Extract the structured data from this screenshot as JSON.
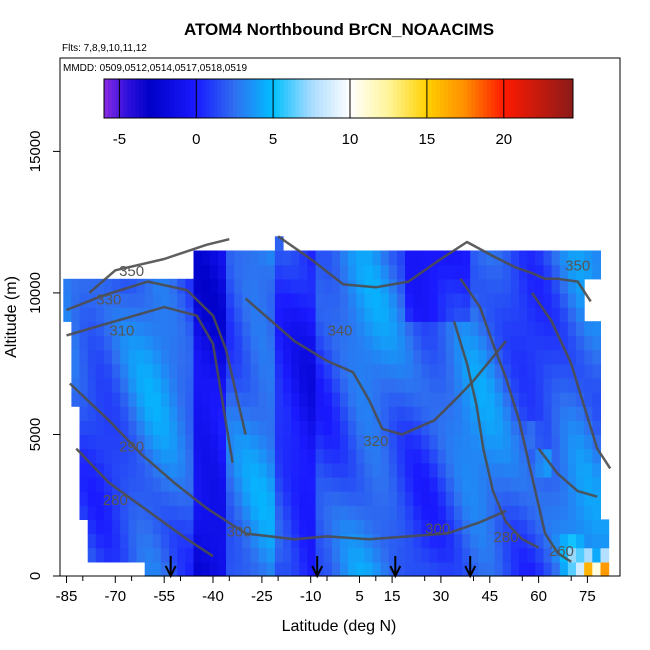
{
  "chart_data": {
    "type": "heatmap",
    "title": "ATOM4 Northbound BrCN_NOAACIMS",
    "flights_label": "Flts: 7,8,9,10,11,12",
    "dates_label": "MMDD: 0509,0512,0514,0517,0518,0519",
    "xlabel": "Latitude (deg N)",
    "ylabel": "Altitude (m)",
    "xlim": [
      -87,
      85
    ],
    "ylim": [
      0,
      18300
    ],
    "x_ticks": [
      -85,
      -70,
      -55,
      -40,
      -25,
      -10,
      5,
      15,
      30,
      45,
      60,
      75
    ],
    "y_ticks": [
      0,
      5000,
      10000,
      15000
    ],
    "colorbar": {
      "range": [
        -6,
        24.5
      ],
      "ticks": [
        -5,
        0,
        5,
        10,
        15,
        20
      ],
      "stops": [
        {
          "v": -6,
          "c": "#8a2be2"
        },
        {
          "v": -4.5,
          "c": "#3010dd"
        },
        {
          "v": -3,
          "c": "#0000c8"
        },
        {
          "v": 0,
          "c": "#1a1aff"
        },
        {
          "v": 2.5,
          "c": "#2f6ff0"
        },
        {
          "v": 5,
          "c": "#00bfff"
        },
        {
          "v": 7.5,
          "c": "#a9dcff"
        },
        {
          "v": 10,
          "c": "#ffffff"
        },
        {
          "v": 12.5,
          "c": "#fff59a"
        },
        {
          "v": 15,
          "c": "#ffd000"
        },
        {
          "v": 17.5,
          "c": "#ff8c00"
        },
        {
          "v": 20,
          "c": "#ff1a00"
        },
        {
          "v": 24.5,
          "c": "#8b1a1a"
        }
      ]
    },
    "coverage": [
      {
        "lat": [
          -85,
          73
        ],
        "alt": [
          9000,
          10500
        ]
      },
      {
        "lat": [
          -83,
          78
        ],
        "alt": [
          6000,
          9000
        ]
      },
      {
        "lat": [
          -80,
          80
        ],
        "alt": [
          2000,
          6000
        ]
      },
      {
        "lat": [
          -78,
          82
        ],
        "alt": [
          500,
          2000
        ]
      },
      {
        "lat": [
          -62,
          82
        ],
        "alt": [
          0,
          500
        ]
      },
      {
        "lat": [
          -45,
          78
        ],
        "alt": [
          10500,
          11300
        ]
      },
      {
        "lat": [
          -20,
          -18
        ],
        "alt": [
          11300,
          12000
        ]
      }
    ],
    "hotspots": [
      {
        "lat": 75,
        "alt": 250,
        "v": 17
      },
      {
        "lat": 80,
        "alt": 250,
        "v": 18
      },
      {
        "lat": 70,
        "alt": 250,
        "v": 6
      },
      {
        "lat": 68,
        "alt": 1000,
        "v": 5
      },
      {
        "lat": 62,
        "alt": 4000,
        "v": 5
      },
      {
        "lat": 71,
        "alt": 800,
        "v": 8
      },
      {
        "lat": 58,
        "alt": 5000,
        "v": 3
      }
    ],
    "contour_labels": [
      {
        "text": "350",
        "lat": -65,
        "alt": 10600
      },
      {
        "text": "330",
        "lat": -72,
        "alt": 9600
      },
      {
        "text": "310",
        "lat": -68,
        "alt": 8500
      },
      {
        "text": "340",
        "lat": -1,
        "alt": 8500
      },
      {
        "text": "320",
        "lat": 10,
        "alt": 4600
      },
      {
        "text": "290",
        "lat": -65,
        "alt": 4400
      },
      {
        "text": "280",
        "lat": -70,
        "alt": 2500
      },
      {
        "text": "300",
        "lat": -32,
        "alt": 1400
      },
      {
        "text": "300",
        "lat": 29,
        "alt": 1500
      },
      {
        "text": "280",
        "lat": 50,
        "alt": 1200
      },
      {
        "text": "350",
        "lat": 72,
        "alt": 10800
      },
      {
        "text": "260",
        "lat": 67,
        "alt": 700
      }
    ],
    "arrows_lat": [
      -53,
      -8,
      16,
      39
    ]
  }
}
